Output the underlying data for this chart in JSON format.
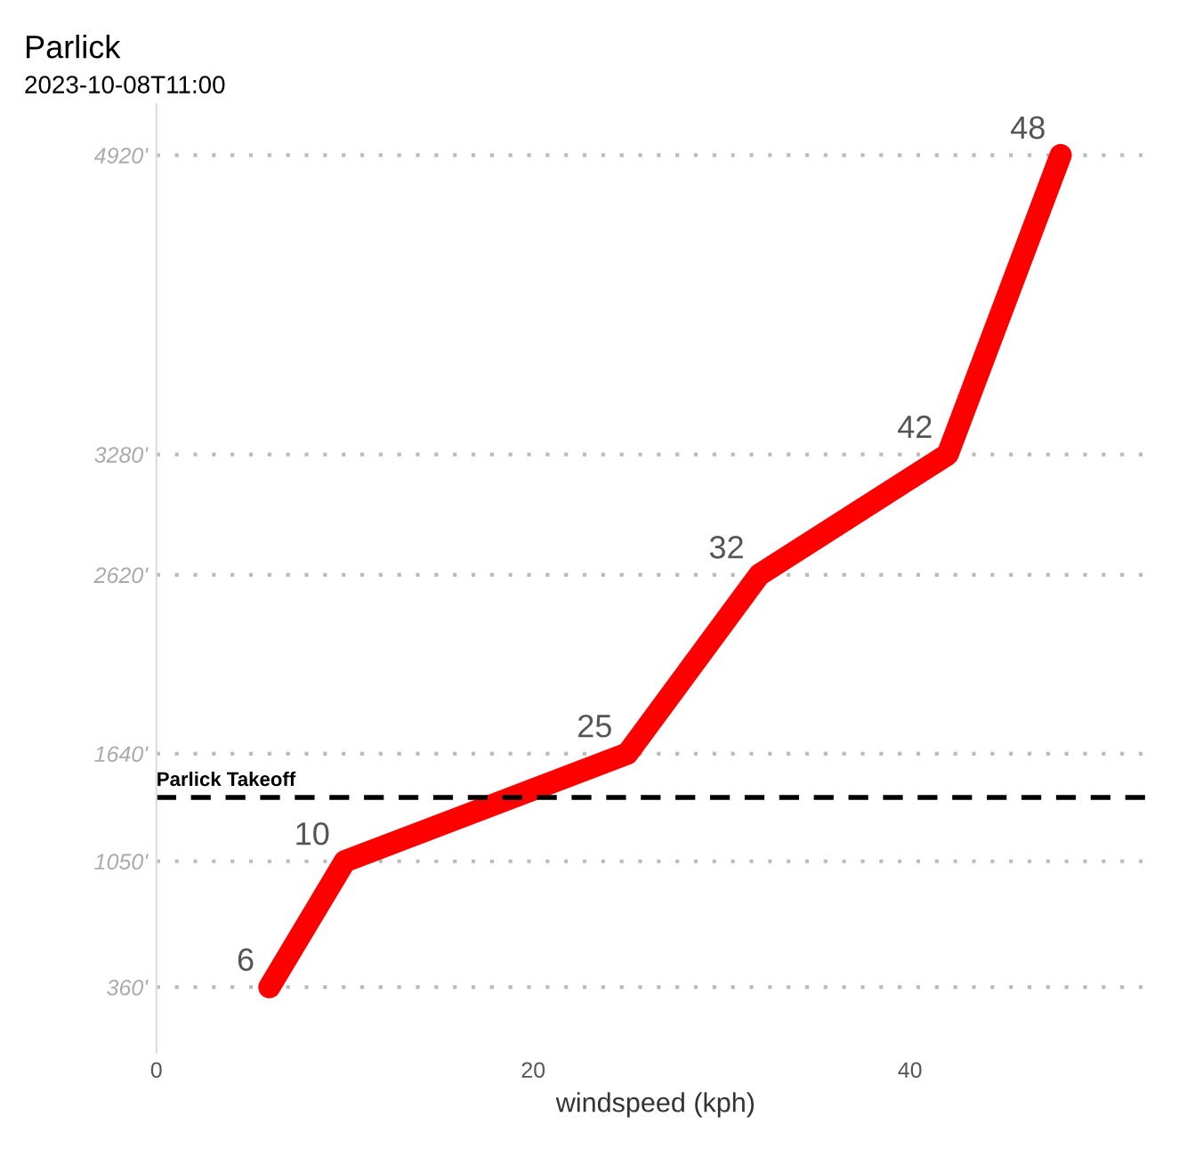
{
  "chart_data": {
    "type": "line",
    "title": "Parlick",
    "subtitle": "2023-10-08T11:00",
    "xlabel": "windspeed (kph)",
    "series": [
      {
        "x": [
          6,
          10,
          25,
          32,
          42,
          48
        ],
        "values": [
          360,
          1050,
          1640,
          2620,
          3280,
          4920
        ],
        "color": "#ff0000"
      }
    ],
    "annotations": [
      {
        "text": "6",
        "x": 6,
        "y": 360
      },
      {
        "text": "10",
        "x": 10,
        "y": 1050
      },
      {
        "text": "25",
        "x": 25,
        "y": 1640
      },
      {
        "text": "32",
        "x": 32,
        "y": 2620
      },
      {
        "text": "42",
        "x": 42,
        "y": 3280
      },
      {
        "text": "48",
        "x": 48,
        "y": 4920
      }
    ],
    "xlim": [
      0,
      53
    ],
    "xticks": [
      0,
      20,
      40
    ],
    "ylim": [
      0,
      5200
    ],
    "yticks": [
      {
        "value": 360,
        "label": "360'"
      },
      {
        "value": 1050,
        "label": "1050'"
      },
      {
        "value": 1640,
        "label": "1640'"
      },
      {
        "value": 2620,
        "label": "2620'"
      },
      {
        "value": 3280,
        "label": "3280'"
      },
      {
        "value": 4920,
        "label": "4920'"
      }
    ],
    "ref_lines": [
      {
        "axis": "y",
        "value": 1400,
        "label": "Parlick Takeoff",
        "color": "#000000",
        "line_style": "dashed"
      }
    ],
    "grid": "y",
    "legend": false
  }
}
